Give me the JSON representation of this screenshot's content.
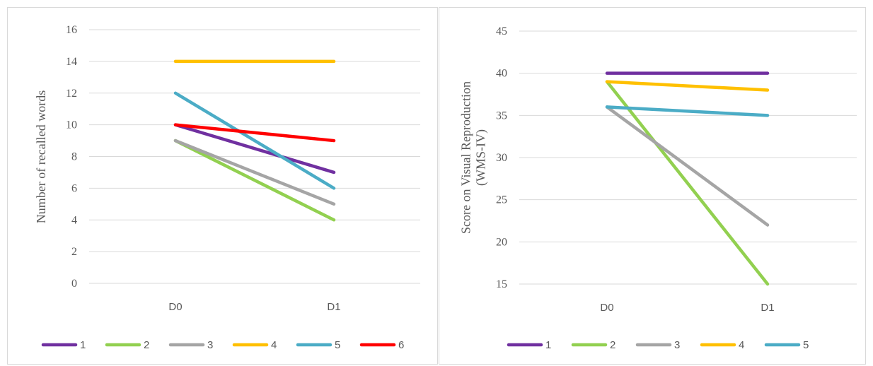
{
  "chart_data": [
    {
      "type": "line",
      "title": "",
      "ylabel_lines": [
        "Number of recalled words"
      ],
      "xlabel": "",
      "categories": [
        "D0",
        "D1"
      ],
      "ylim": [
        0,
        16
      ],
      "yticks": [
        0,
        2,
        4,
        6,
        8,
        10,
        12,
        14,
        16
      ],
      "grid": true,
      "legend_position": "bottom",
      "series": [
        {
          "name": "1",
          "color": "#7030a0",
          "values": [
            10,
            7
          ]
        },
        {
          "name": "2",
          "color": "#92d050",
          "values": [
            9,
            4
          ]
        },
        {
          "name": "3",
          "color": "#a5a5a5",
          "values": [
            9,
            5
          ]
        },
        {
          "name": "4",
          "color": "#ffc000",
          "values": [
            14,
            14
          ]
        },
        {
          "name": "5",
          "color": "#4bacc6",
          "values": [
            12,
            6
          ]
        },
        {
          "name": "6",
          "color": "#ff0000",
          "values": [
            10,
            9
          ]
        }
      ]
    },
    {
      "type": "line",
      "title": "",
      "ylabel_lines": [
        "Score on Visual Reproduction",
        "(WMS-IV)"
      ],
      "xlabel": "",
      "categories": [
        "D0",
        "D1"
      ],
      "ylim": [
        15,
        45
      ],
      "yticks": [
        15,
        20,
        25,
        30,
        35,
        40,
        45
      ],
      "grid": true,
      "legend_position": "bottom",
      "series": [
        {
          "name": "1",
          "color": "#7030a0",
          "values": [
            40,
            40
          ]
        },
        {
          "name": "2",
          "color": "#92d050",
          "values": [
            39,
            15
          ]
        },
        {
          "name": "3",
          "color": "#a5a5a5",
          "values": [
            36,
            22
          ]
        },
        {
          "name": "4",
          "color": "#ffc000",
          "values": [
            39,
            38
          ]
        },
        {
          "name": "5",
          "color": "#4bacc6",
          "values": [
            36,
            35
          ]
        }
      ]
    }
  ]
}
